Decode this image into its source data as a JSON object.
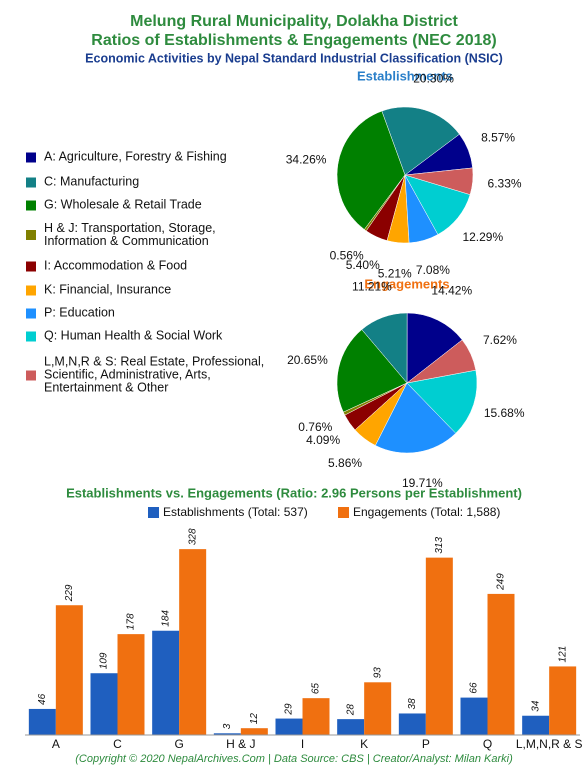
{
  "title": "Melung Rural Municipality, Dolakha District",
  "subtitle": "Ratios of Establishments & Engagements (NEC 2018)",
  "description": "Economic Activities by Nepal Standard Industrial Classification (NSIC)",
  "caption": "(Copyright © 2020 NepalArchives.Com | Data Source: CBS | Creator/Analyst: Milan Karki)",
  "legend": {
    "labels": [
      "A: Agriculture, Forestry & Fishing",
      "C: Manufacturing",
      "G: Wholesale & Retail Trade",
      "H & J: Transportation, Storage, Information & Communication",
      "I: Accommodation & Food",
      "K: Financial, Insurance",
      "P: Education",
      "Q: Human Health & Social Work",
      "L,M,N,R & S: Real Estate, Professional, Scientific, Administrative, Arts, Entertainment & Other"
    ],
    "colors": [
      "#00008b",
      "#138086",
      "#008000",
      "#808000",
      "#8b0000",
      "#ffa500",
      "#1e90ff",
      "#00ced1",
      "#cd5c5c"
    ]
  },
  "chart_data": [
    {
      "type": "pie",
      "title": "Establishments",
      "values": [
        8.57,
        20.3,
        34.26,
        0.56,
        5.4,
        5.21,
        7.08,
        12.29,
        6.33
      ],
      "value_labels": [
        "8.57%",
        "20.30%",
        "34.26%",
        "0.56%",
        "5.40%",
        "5.21%",
        "7.08%",
        "12.29%",
        "6.33%"
      ]
    },
    {
      "type": "pie",
      "title": "Engagements",
      "values": [
        14.42,
        11.21,
        20.65,
        0.76,
        4.09,
        5.86,
        19.71,
        15.68,
        7.62
      ],
      "value_labels": [
        "14.42%",
        "11.21%",
        "20.65%",
        "0.76%",
        "4.09%",
        "5.86%",
        "19.71%",
        "15.68%",
        "7.62%"
      ]
    },
    {
      "type": "bar",
      "title": "Establishments vs. Engagements (Ratio: 2.96 Persons per Establishment)",
      "categories": [
        "A",
        "C",
        "G",
        "H & J",
        "I",
        "K",
        "P",
        "Q",
        "L,M,N,R & S"
      ],
      "series": [
        {
          "name": "Establishments (Total: 537)",
          "color": "#1f5fbf",
          "values": [
            46,
            109,
            184,
            3,
            29,
            28,
            38,
            66,
            34
          ]
        },
        {
          "name": "Engagements (Total: 1,588)",
          "color": "#f07010",
          "values": [
            229,
            178,
            328,
            12,
            65,
            93,
            313,
            249,
            121
          ]
        }
      ],
      "ylim": [
        0,
        330
      ]
    }
  ]
}
